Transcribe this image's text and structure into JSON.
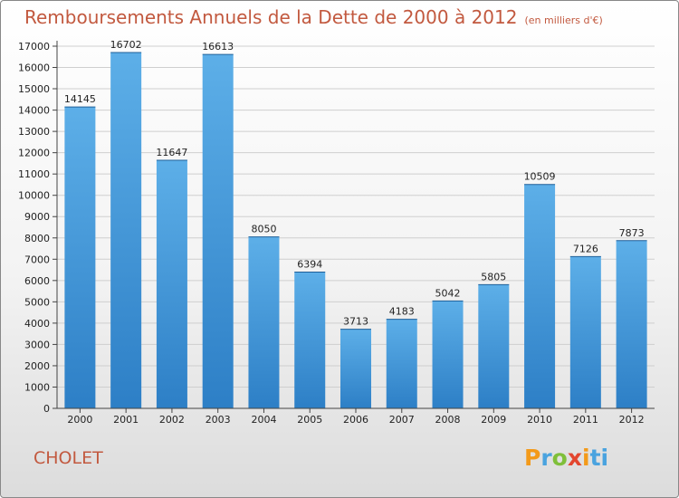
{
  "header": {
    "title": "Remboursements Annuels de la Dette de 2000 à 2012",
    "subtitle": "(en milliers d'€)"
  },
  "footer": {
    "city": "CHOLET",
    "logo_letters": [
      "P",
      "r",
      "o",
      "x",
      "i",
      "ti"
    ]
  },
  "colors": {
    "bar_top": "#5dafe8",
    "bar_bottom": "#2d7fc6",
    "title": "#c2593f",
    "grid": "#cfcfcf"
  },
  "chart_data": {
    "type": "bar",
    "title": "Remboursements Annuels de la Dette de 2000 à 2012",
    "subtitle": "(en milliers d'€)",
    "categories": [
      "2000",
      "2001",
      "2002",
      "2003",
      "2004",
      "2005",
      "2006",
      "2007",
      "2008",
      "2009",
      "2010",
      "2011",
      "2012"
    ],
    "values": [
      14145,
      16702,
      11647,
      16613,
      8050,
      6394,
      3713,
      4183,
      5042,
      5805,
      10509,
      7126,
      7873
    ],
    "ylim": [
      0,
      17000
    ],
    "yticks": [
      0,
      1000,
      2000,
      3000,
      4000,
      5000,
      6000,
      7000,
      8000,
      9000,
      10000,
      11000,
      12000,
      13000,
      14000,
      15000,
      16000,
      17000
    ],
    "grid": true,
    "xlabel": "",
    "ylabel": ""
  }
}
